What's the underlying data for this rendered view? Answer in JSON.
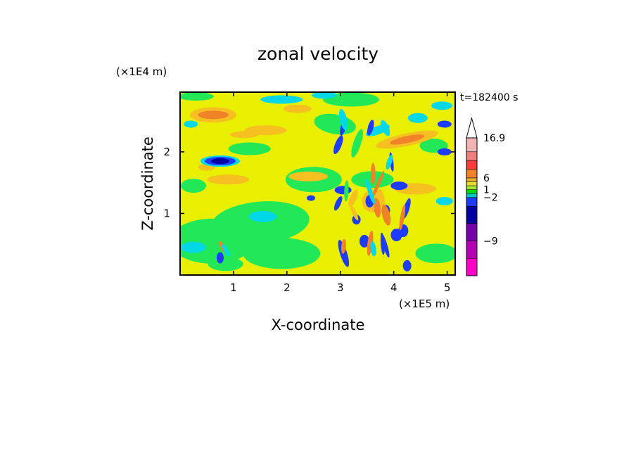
{
  "chart_data": {
    "type": "heatmap",
    "title": "zonal velocity",
    "xlabel": "X-coordinate",
    "ylabel": "Z-coordinate",
    "x_unit": "(×1E5 m)",
    "y_unit": "(×1E4 m)",
    "time_label": "t=182400 s",
    "xlim": [
      0,
      5.15
    ],
    "ylim": [
      0,
      2.97
    ],
    "x_ticks": [
      1,
      2,
      3,
      4,
      5
    ],
    "y_ticks": [
      1,
      2
    ],
    "colorbar": {
      "tick_labels": [
        "16.9",
        "6",
        "1",
        "−2",
        "−9"
      ],
      "levels": [
        {
          "color": "#ff00c8"
        },
        {
          "color": "#b400b4"
        },
        {
          "color": "#7800aa"
        },
        {
          "color": "#0000a0"
        },
        {
          "color": "#1e3cff"
        },
        {
          "color": "#00c8c8"
        },
        {
          "color": "#00dc00"
        },
        {
          "color": "#a0e632"
        },
        {
          "color": "#e6dc32"
        },
        {
          "color": "#e6af2d"
        },
        {
          "color": "#f08228"
        },
        {
          "color": "#fa3c3c"
        },
        {
          "color": "#f08080"
        },
        {
          "color": "#f0b4b4"
        }
      ],
      "max_label": "16.9",
      "extend_top": true
    },
    "colors": {
      "strong_negative": "#1e3cff",
      "weak_negative": "#00d8e8",
      "near_zero": "#22e858",
      "weak_positive": "#e8f000",
      "moderate_positive": "#f5c020",
      "strong_positive": "#f08228",
      "very_strong_positive": "#e86420"
    }
  }
}
